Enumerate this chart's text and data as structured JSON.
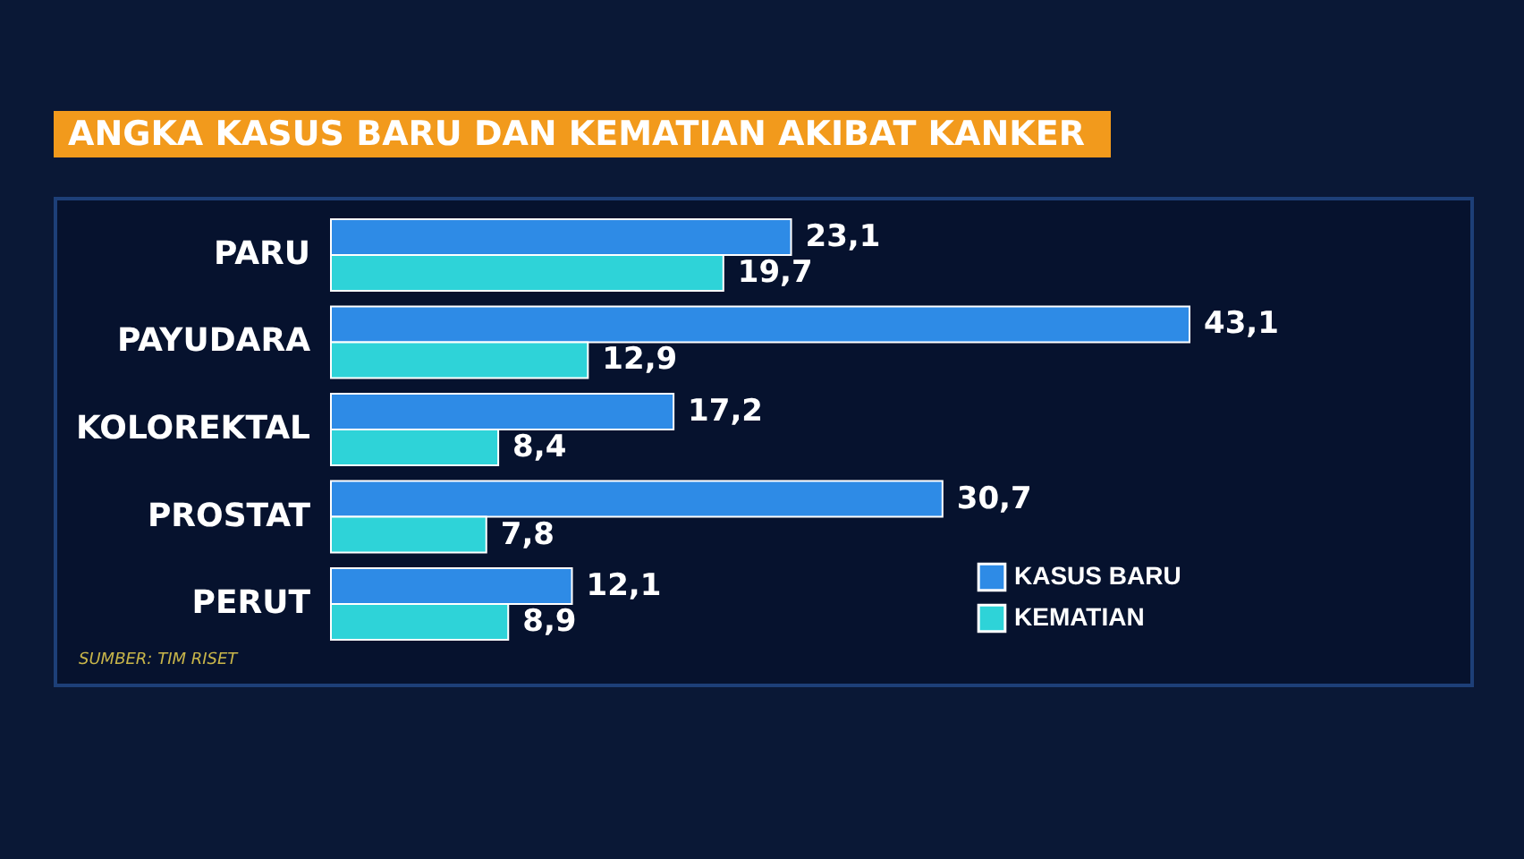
{
  "chart_data": {
    "type": "bar",
    "orientation": "horizontal",
    "title": "ANGKA KASUS BARU DAN KEMATIAN AKIBAT KANKER",
    "categories": [
      "PARU",
      "PAYUDARA",
      "KOLOREKTAL",
      "PROSTAT",
      "PERUT"
    ],
    "series": [
      {
        "name": "KASUS BARU",
        "color": "#2e8be6",
        "values": [
          23.1,
          43.1,
          17.2,
          30.7,
          12.1
        ],
        "value_labels": [
          "23,1",
          "43,1",
          "17,2",
          "30,7",
          "12,1"
        ]
      },
      {
        "name": "KEMATIAN",
        "color": "#2ed3d8",
        "values": [
          19.7,
          12.9,
          8.4,
          7.8,
          8.9
        ],
        "value_labels": [
          "19,7",
          "12,9",
          "8,4",
          "7,8",
          "8,9"
        ]
      }
    ],
    "legend": "bottom right",
    "grid": false,
    "annotations": [
      "SUMBER: TIM RISET"
    ]
  }
}
